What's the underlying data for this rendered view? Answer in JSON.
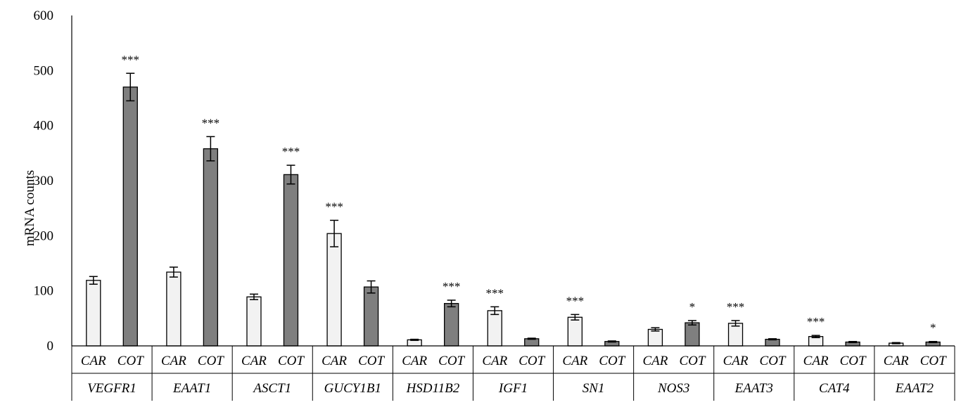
{
  "chart_data": {
    "type": "bar",
    "title": "",
    "xlabel": "",
    "ylabel": "mRNA counts",
    "ylim": [
      0,
      600
    ],
    "yticks": [
      "0",
      "100",
      "200",
      "300",
      "400",
      "500",
      "600"
    ],
    "genes": [
      "VEGFR1",
      "EAAT1",
      "ASCT1",
      "GUCY1B1",
      "HSD11B2",
      "IGF1",
      "SN1",
      "NOS3",
      "EAAT3",
      "CAT4",
      "EAAT2"
    ],
    "subcategories": [
      "CAR",
      "COT"
    ],
    "series": [
      {
        "name": "CAR",
        "color": "#f2f2f2",
        "values": [
          119,
          134,
          89,
          204,
          11,
          64,
          52,
          30,
          41,
          17,
          5
        ],
        "errors": [
          7,
          9,
          5,
          24,
          1,
          7,
          5,
          3,
          5,
          2,
          1
        ],
        "significance": [
          "",
          "",
          "",
          "***",
          "",
          "***",
          "***",
          "",
          "***",
          "***",
          ""
        ]
      },
      {
        "name": "COT",
        "color": "#7f7f7f",
        "values": [
          470,
          358,
          311,
          107,
          77,
          13,
          8,
          42,
          12,
          7,
          7
        ],
        "errors": [
          25,
          22,
          17,
          11,
          6,
          1,
          1,
          4,
          1,
          1,
          1
        ],
        "significance": [
          "***",
          "***",
          "***",
          "",
          "***",
          "",
          "",
          "*",
          "",
          "",
          "*"
        ]
      }
    ],
    "grid": false,
    "legend": "none"
  }
}
